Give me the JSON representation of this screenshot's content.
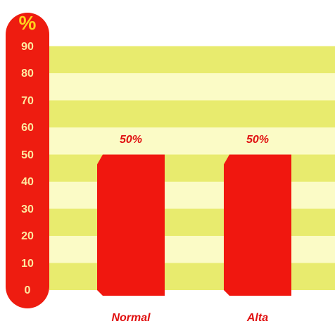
{
  "colors": {
    "bar": "#f0170f",
    "axis_pill": "#ee1c10",
    "stripe_dark": "#e8eb6e",
    "stripe_light": "#fbfbc6",
    "axis_unit": "#ffd21c",
    "tick_text": "#ffe9a0",
    "label_text": "#e01010"
  },
  "chart_data": {
    "type": "bar",
    "categories": [
      "Normal",
      "Alta"
    ],
    "values": [
      50,
      50
    ],
    "data_labels": [
      "50%",
      "50%"
    ],
    "ylabel": "%",
    "ylim": [
      0,
      90
    ],
    "yticks": [
      "90",
      "80",
      "70",
      "60",
      "50",
      "40",
      "30",
      "20",
      "10",
      "0"
    ],
    "grid": "alternating horizontal bands",
    "legend": "none"
  }
}
